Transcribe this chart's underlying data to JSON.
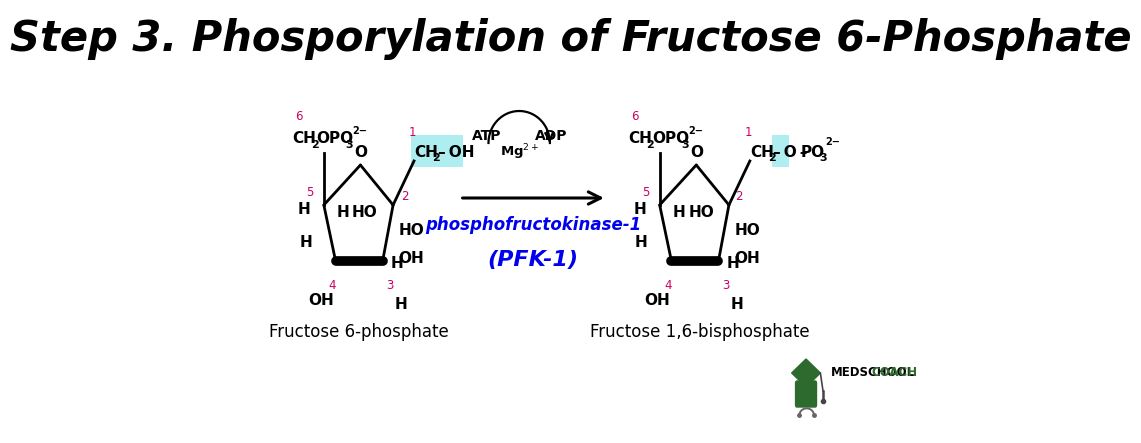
{
  "title": "Step 3. Phosporylation of Fructose 6-Phosphate",
  "title_fontsize": 30,
  "bg_color": "#ffffff",
  "black": "#000000",
  "pink": "#cc0066",
  "blue": "#0000ee",
  "green_dark": "#2d6a2d",
  "cyan_highlight": "#aeeef0",
  "label_left": "Fructose 6-phosphate",
  "label_right": "Fructose 1,6-bisphosphate",
  "enzyme": "phosphofructokinase-1",
  "enzyme_abbr": "(PFK-1)",
  "atp": "ATP",
  "adp": "ADP",
  "medschool_bold": "MEDSCHOOL",
  "medschool_light": "COACH"
}
